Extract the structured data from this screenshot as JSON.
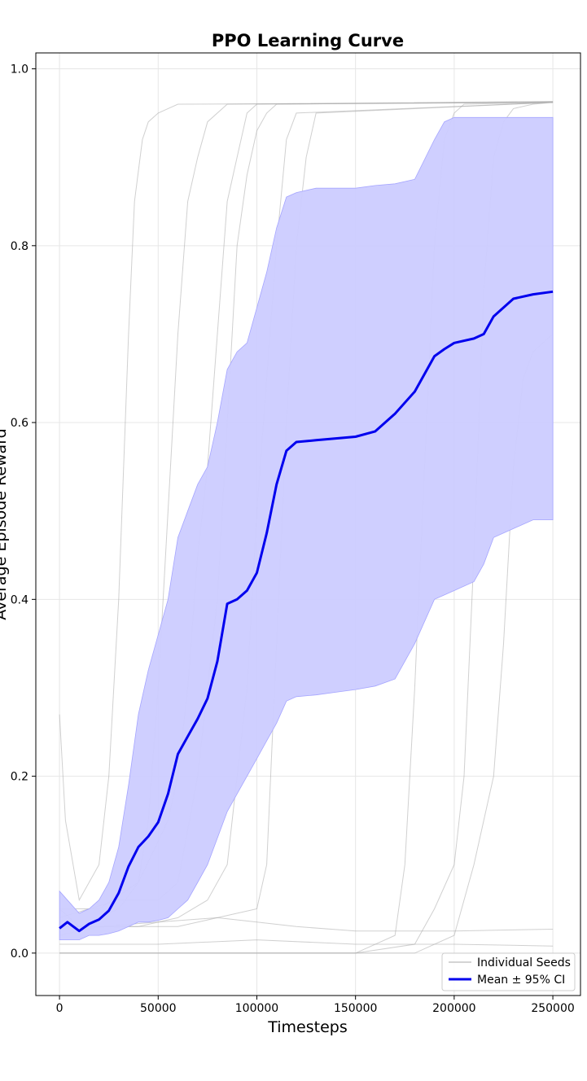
{
  "chart_data": {
    "type": "line",
    "title": "PPO Learning Curve",
    "xlabel": "Timesteps",
    "ylabel": "Average Episode Reward",
    "xlim": [
      -12000,
      264000
    ],
    "ylim": [
      -0.048,
      1.018
    ],
    "x_ticks": [
      0,
      50000,
      100000,
      150000,
      200000,
      250000
    ],
    "x_tick_labels": [
      "0",
      "50000",
      "100000",
      "150000",
      "200000",
      "250000"
    ],
    "y_ticks": [
      0.0,
      0.2,
      0.4,
      0.6,
      0.8,
      1.0
    ],
    "y_tick_labels": [
      "0.0",
      "0.2",
      "0.4",
      "0.6",
      "0.8",
      "1.0"
    ],
    "grid": true,
    "legend": {
      "placement": "lower-right",
      "entries": [
        "Individual Seeds",
        "Mean ± 95% CI"
      ]
    },
    "colors": {
      "seed_line": "#aaaaaa",
      "mean_line": "#0000ee",
      "ci_fill": "#ccccff",
      "ci_edge": "#a5a5ff",
      "grid": "#e6e6e6"
    },
    "mean": {
      "name": "Mean ± 95% CI",
      "x": [
        0,
        4000,
        10000,
        15000,
        20000,
        25000,
        30000,
        35000,
        40000,
        45000,
        50000,
        55000,
        60000,
        65000,
        70000,
        75000,
        80000,
        85000,
        90000,
        95000,
        100000,
        105000,
        110000,
        115000,
        120000,
        130000,
        140000,
        150000,
        160000,
        170000,
        180000,
        190000,
        195000,
        200000,
        210000,
        215000,
        220000,
        230000,
        240000,
        250000
      ],
      "y": [
        0.028,
        0.035,
        0.025,
        0.033,
        0.038,
        0.048,
        0.068,
        0.098,
        0.12,
        0.132,
        0.148,
        0.18,
        0.225,
        0.245,
        0.265,
        0.288,
        0.33,
        0.395,
        0.4,
        0.41,
        0.43,
        0.475,
        0.53,
        0.568,
        0.578,
        0.58,
        0.582,
        0.584,
        0.59,
        0.61,
        0.635,
        0.675,
        0.683,
        0.69,
        0.695,
        0.7,
        0.72,
        0.74,
        0.745,
        0.748
      ]
    },
    "ci_upper": [
      0.07,
      0.06,
      0.045,
      0.05,
      0.06,
      0.08,
      0.12,
      0.19,
      0.27,
      0.32,
      0.36,
      0.4,
      0.47,
      0.5,
      0.53,
      0.55,
      0.6,
      0.66,
      0.68,
      0.69,
      0.73,
      0.77,
      0.82,
      0.855,
      0.86,
      0.865,
      0.865,
      0.865,
      0.868,
      0.87,
      0.875,
      0.92,
      0.94,
      0.945,
      0.945,
      0.945,
      0.945,
      0.945,
      0.945,
      0.945
    ],
    "ci_lower": [
      0.015,
      0.015,
      0.015,
      0.02,
      0.02,
      0.022,
      0.025,
      0.03,
      0.035,
      0.035,
      0.037,
      0.04,
      0.05,
      0.06,
      0.08,
      0.1,
      0.13,
      0.16,
      0.18,
      0.2,
      0.22,
      0.24,
      0.26,
      0.285,
      0.29,
      0.292,
      0.295,
      0.298,
      0.302,
      0.31,
      0.35,
      0.4,
      0.405,
      0.41,
      0.42,
      0.44,
      0.47,
      0.48,
      0.49,
      0.49
    ],
    "seeds": [
      {
        "x": [
          0,
          3000,
          10000,
          20000,
          25000,
          30000,
          35000,
          38000,
          42000,
          45000,
          50000,
          55000,
          60000,
          250000
        ],
        "y": [
          0.27,
          0.15,
          0.06,
          0.1,
          0.2,
          0.4,
          0.7,
          0.85,
          0.92,
          0.94,
          0.95,
          0.955,
          0.96,
          0.962
        ]
      },
      {
        "x": [
          0,
          10000,
          20000,
          30000,
          40000,
          45000,
          50000,
          55000,
          60000,
          65000,
          70000,
          75000,
          85000,
          250000
        ],
        "y": [
          0.05,
          0.03,
          0.04,
          0.05,
          0.08,
          0.15,
          0.3,
          0.5,
          0.7,
          0.85,
          0.9,
          0.94,
          0.96,
          0.963
        ]
      },
      {
        "x": [
          0,
          20000,
          40000,
          55000,
          60000,
          65000,
          70000,
          75000,
          80000,
          85000,
          90000,
          95000,
          100000,
          250000
        ],
        "y": [
          0.05,
          0.05,
          0.08,
          0.15,
          0.2,
          0.3,
          0.45,
          0.55,
          0.7,
          0.85,
          0.9,
          0.95,
          0.96,
          0.962
        ]
      },
      {
        "x": [
          0,
          30000,
          50000,
          60000,
          70000,
          80000,
          85000,
          90000,
          95000,
          100000,
          105000,
          110000,
          250000
        ],
        "y": [
          0.04,
          0.06,
          0.06,
          0.08,
          0.2,
          0.4,
          0.6,
          0.8,
          0.88,
          0.93,
          0.95,
          0.96,
          0.963
        ]
      },
      {
        "x": [
          0,
          40000,
          60000,
          75000,
          85000,
          95000,
          100000,
          105000,
          110000,
          115000,
          120000,
          250000
        ],
        "y": [
          0.03,
          0.03,
          0.04,
          0.06,
          0.1,
          0.3,
          0.5,
          0.65,
          0.8,
          0.92,
          0.95,
          0.962
        ]
      },
      {
        "x": [
          0,
          60000,
          80000,
          100000,
          105000,
          110000,
          115000,
          120000,
          125000,
          130000,
          250000
        ],
        "y": [
          0.03,
          0.03,
          0.04,
          0.05,
          0.1,
          0.35,
          0.6,
          0.8,
          0.9,
          0.95,
          0.962
        ]
      },
      {
        "x": [
          0,
          100000,
          150000,
          170000,
          175000,
          180000,
          185000,
          190000,
          195000,
          200000,
          205000,
          250000
        ],
        "y": [
          0.0,
          0.0,
          0.0,
          0.02,
          0.1,
          0.3,
          0.55,
          0.8,
          0.92,
          0.95,
          0.96,
          0.962
        ]
      },
      {
        "x": [
          0,
          150000,
          180000,
          190000,
          200000,
          205000,
          210000,
          215000,
          220000,
          225000,
          230000,
          240000,
          250000
        ],
        "y": [
          0.0,
          0.0,
          0.01,
          0.05,
          0.1,
          0.2,
          0.45,
          0.75,
          0.9,
          0.94,
          0.955,
          0.96,
          0.962
        ]
      },
      {
        "x": [
          0,
          180000,
          200000,
          210000,
          220000,
          225000,
          230000,
          235000,
          240000,
          245000,
          250000
        ],
        "y": [
          0.0,
          0.0,
          0.02,
          0.1,
          0.2,
          0.35,
          0.55,
          0.65,
          0.68,
          0.69,
          0.7
        ]
      },
      {
        "x": [
          0,
          20000,
          50000,
          80000,
          100000,
          120000,
          150000,
          200000,
          250000
        ],
        "y": [
          0.02,
          0.03,
          0.035,
          0.04,
          0.035,
          0.03,
          0.025,
          0.025,
          0.027
        ]
      },
      {
        "x": [
          0,
          50000,
          100000,
          150000,
          200000,
          250000
        ],
        "y": [
          0.01,
          0.01,
          0.015,
          0.01,
          0.01,
          0.008
        ]
      }
    ]
  }
}
